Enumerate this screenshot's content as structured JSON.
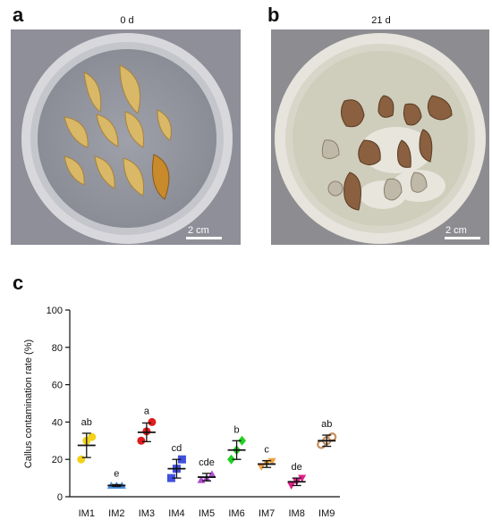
{
  "panels": {
    "a": {
      "letter": "a",
      "title": "0 d",
      "scale": "2 cm"
    },
    "b": {
      "letter": "b",
      "title": "21 d",
      "scale": "2 cm"
    },
    "c": {
      "letter": "c"
    }
  },
  "chart_data": {
    "type": "scatter",
    "categories": [
      "IM1",
      "IM2",
      "IM3",
      "IM4",
      "IM5",
      "IM6",
      "IM7",
      "IM8",
      "IM9"
    ],
    "ylabel": "Callus contamination rate (%)",
    "ylim": [
      0,
      100
    ],
    "yticks": [
      0,
      20,
      40,
      60,
      80,
      100
    ],
    "grid": false,
    "groups": [
      {
        "name": "IM1",
        "points": [
          20,
          30,
          32
        ],
        "mean": 27.5,
        "sd": 6.5,
        "letter": "ab",
        "color": "#f2d21a",
        "marker": "circle"
      },
      {
        "name": "IM2",
        "points": [
          6,
          6,
          6
        ],
        "mean": 6,
        "sd": 0.5,
        "letter": "e",
        "color": "#4a8ee0",
        "marker": "triangle"
      },
      {
        "name": "IM3",
        "points": [
          30,
          35,
          40
        ],
        "mean": 34.5,
        "sd": 5,
        "letter": "a",
        "color": "#e01b1b",
        "marker": "circle"
      },
      {
        "name": "IM4",
        "points": [
          10,
          15,
          20
        ],
        "mean": 15,
        "sd": 5,
        "letter": "cd",
        "color": "#4050e0",
        "marker": "square"
      },
      {
        "name": "IM5",
        "points": [
          9,
          10,
          12
        ],
        "mean": 10.5,
        "sd": 2,
        "letter": "cde",
        "color": "#b050d0",
        "marker": "triangle"
      },
      {
        "name": "IM6",
        "points": [
          20,
          25,
          30
        ],
        "mean": 25,
        "sd": 5,
        "letter": "b",
        "color": "#22d022",
        "marker": "diamond"
      },
      {
        "name": "IM7",
        "points": [
          16,
          18,
          19
        ],
        "mean": 17.5,
        "sd": 1.8,
        "letter": "c",
        "color": "#f0a040",
        "marker": "triangle-down"
      },
      {
        "name": "IM8",
        "points": [
          6,
          8,
          10
        ],
        "mean": 8,
        "sd": 2,
        "letter": "de",
        "color": "#e0208a",
        "marker": "triangle-down"
      },
      {
        "name": "IM9",
        "points": [
          28,
          30,
          32
        ],
        "mean": 30,
        "sd": 3,
        "letter": "ab",
        "color": "#c49060",
        "marker": "ring"
      }
    ]
  }
}
